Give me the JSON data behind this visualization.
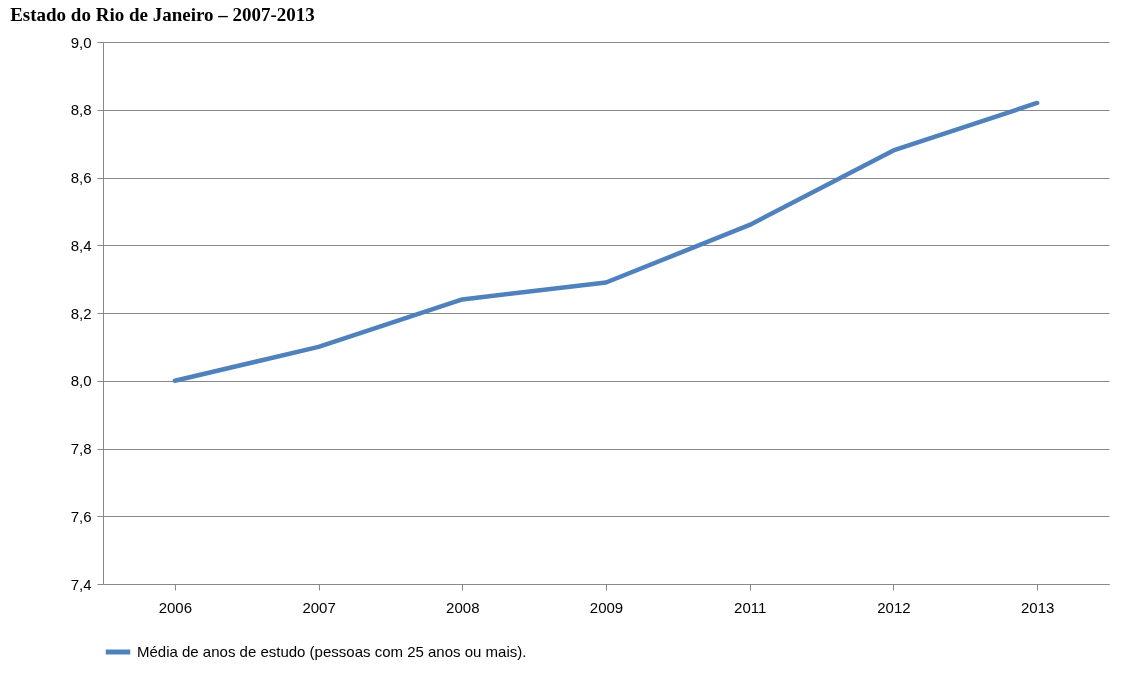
{
  "chart_data": {
    "type": "line",
    "title": "Estado do Rio de Janeiro – 2007-2013",
    "categories": [
      "2006",
      "2007",
      "2008",
      "2009",
      "2011",
      "2012",
      "2013"
    ],
    "series": [
      {
        "name": "Média de anos de estudo (pessoas com 25 anos ou mais).",
        "color": "#4f81bd",
        "values": [
          8.0,
          8.1,
          8.24,
          8.29,
          8.46,
          8.68,
          8.82
        ]
      }
    ],
    "ylim": [
      7.4,
      9.0
    ],
    "yticks": [
      {
        "value": 7.4,
        "label": "7,4"
      },
      {
        "value": 7.6,
        "label": "7,6"
      },
      {
        "value": 7.8,
        "label": "7,8"
      },
      {
        "value": 8.0,
        "label": "8,0"
      },
      {
        "value": 8.2,
        "label": "8,2"
      },
      {
        "value": 8.4,
        "label": "8,4"
      },
      {
        "value": 8.6,
        "label": "8,6"
      },
      {
        "value": 8.8,
        "label": "8,8"
      },
      {
        "value": 9.0,
        "label": "9,0"
      }
    ],
    "grid": "y",
    "legend": "bottom",
    "marker": "none",
    "line_style": "solid"
  }
}
